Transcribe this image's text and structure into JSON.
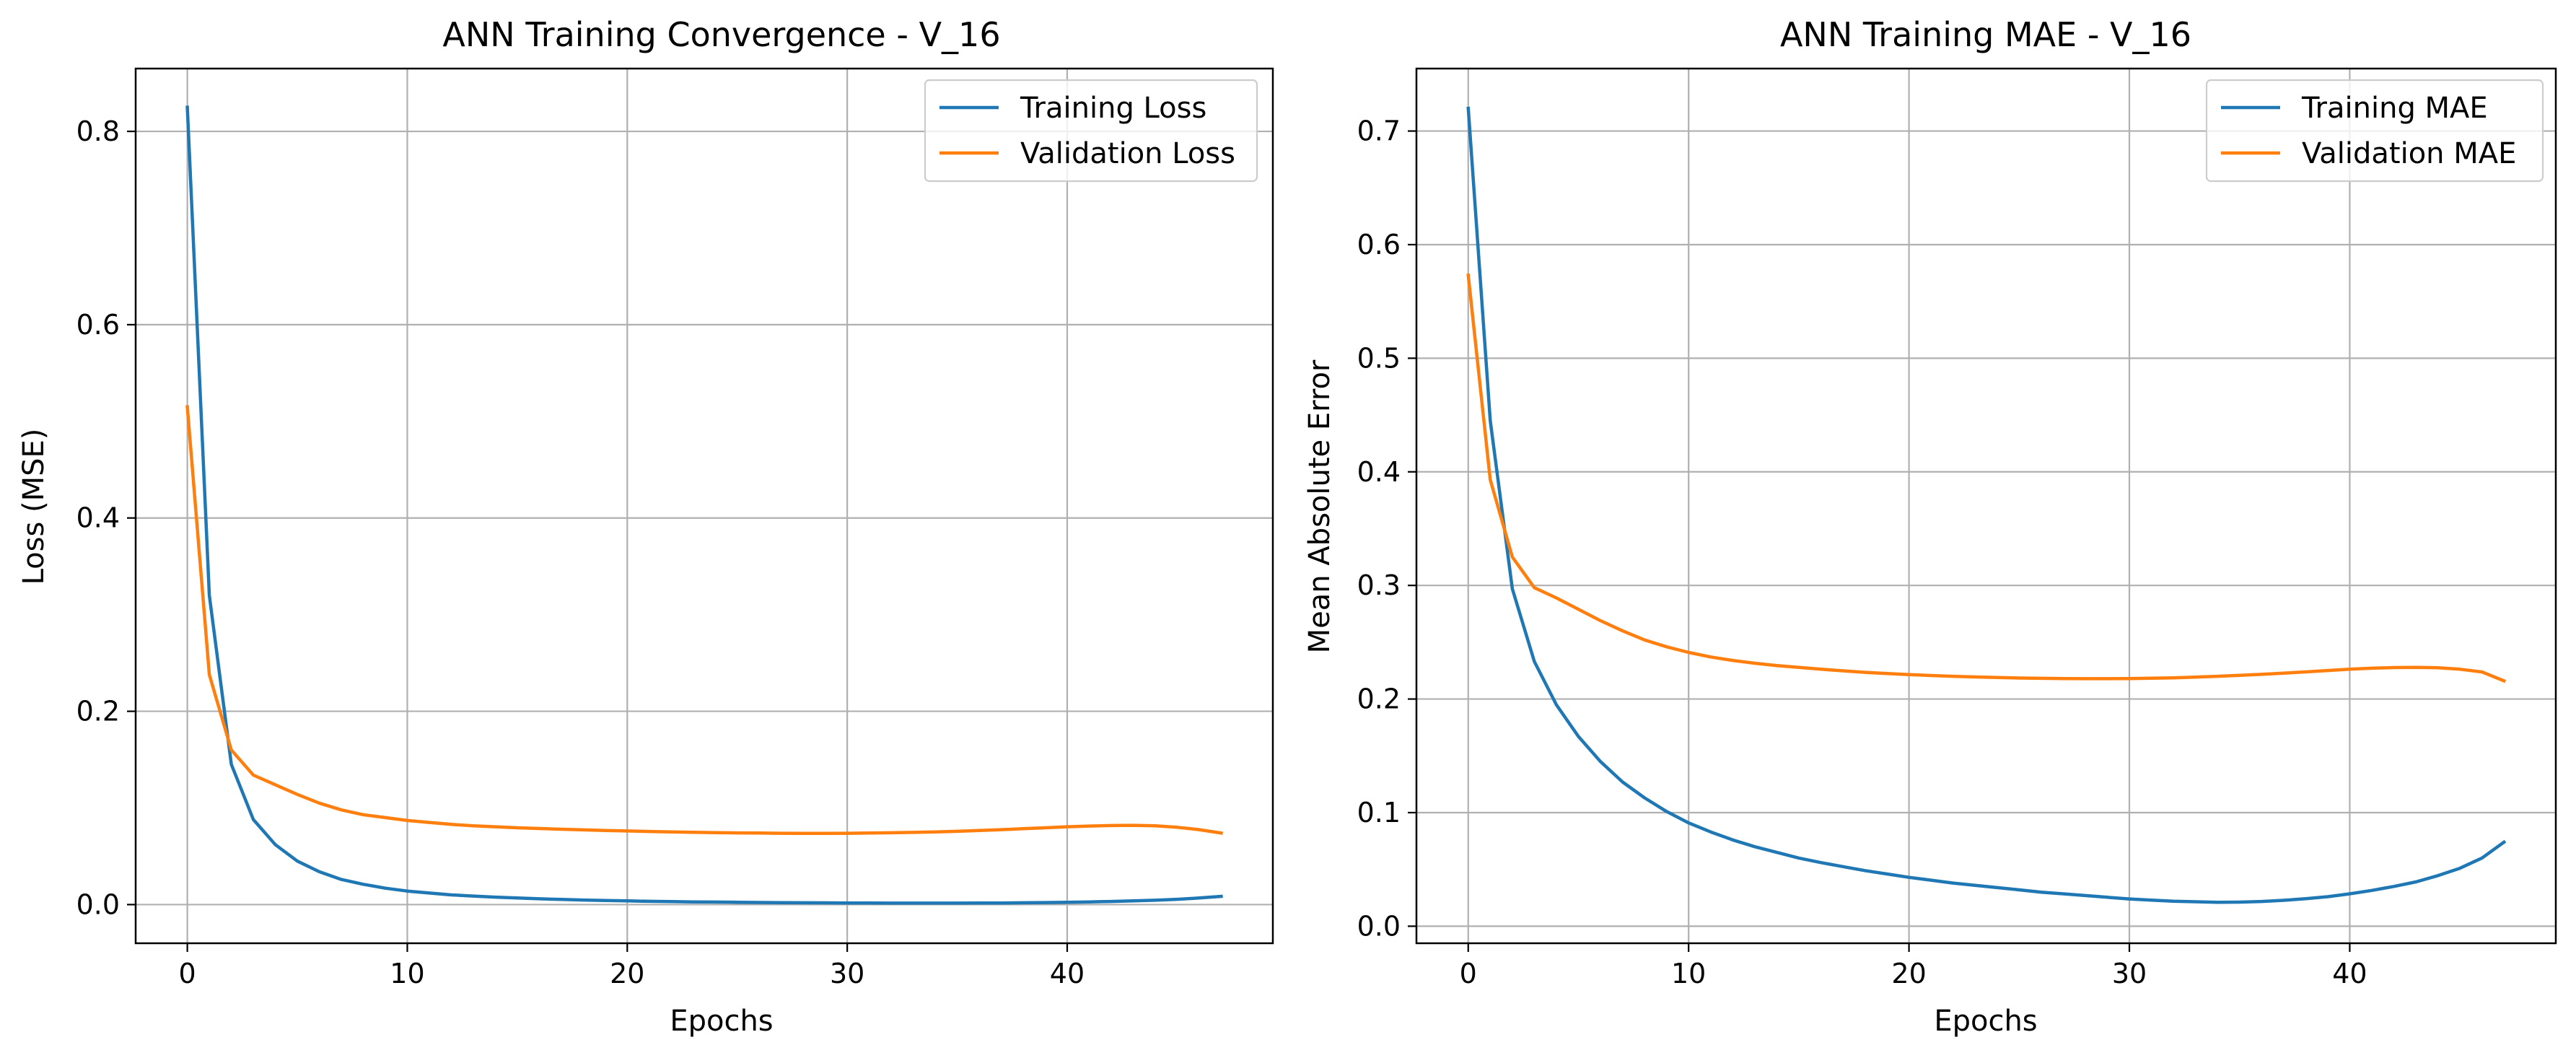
{
  "chart_data": [
    {
      "type": "line",
      "title": "ANN Training Convergence - V_16",
      "xlabel": "Epochs",
      "ylabel": "Loss (MSE)",
      "xlim": [
        -2.35,
        49.35
      ],
      "ylim": [
        -0.04,
        0.865
      ],
      "xticks": [
        0,
        10,
        20,
        30,
        40
      ],
      "yticks": [
        0.0,
        0.2,
        0.4,
        0.6,
        0.8
      ],
      "ytick_labels": [
        "0.0",
        "0.2",
        "0.4",
        "0.6",
        "0.8"
      ],
      "grid": true,
      "legend_position": "top-right",
      "x": [
        0,
        1,
        2,
        3,
        4,
        5,
        6,
        7,
        8,
        9,
        10,
        11,
        12,
        13,
        14,
        15,
        16,
        17,
        18,
        19,
        20,
        21,
        22,
        23,
        24,
        25,
        26,
        27,
        28,
        29,
        30,
        31,
        32,
        33,
        34,
        35,
        36,
        37,
        38,
        39,
        40,
        41,
        42,
        43,
        44,
        45,
        46,
        47
      ],
      "series": [
        {
          "name": "Training Loss",
          "color": "#1f77b4",
          "values": [
            0.825,
            0.32,
            0.145,
            0.088,
            0.062,
            0.045,
            0.034,
            0.026,
            0.021,
            0.017,
            0.014,
            0.012,
            0.01,
            0.0088,
            0.0077,
            0.0068,
            0.006,
            0.0053,
            0.0047,
            0.0042,
            0.0038,
            0.0034,
            0.0031,
            0.0028,
            0.0026,
            0.0024,
            0.0022,
            0.002,
            0.0019,
            0.0018,
            0.0017,
            0.0016,
            0.0015,
            0.0015,
            0.0015,
            0.0015,
            0.0016,
            0.0017,
            0.0019,
            0.0021,
            0.0024,
            0.0028,
            0.0032,
            0.0038,
            0.0045,
            0.0055,
            0.0068,
            0.0085
          ]
        },
        {
          "name": "Validation Loss",
          "color": "#ff7f0e",
          "values": [
            0.515,
            0.238,
            0.16,
            0.134,
            0.124,
            0.114,
            0.105,
            0.098,
            0.093,
            0.09,
            0.087,
            0.085,
            0.083,
            0.0815,
            0.0805,
            0.0795,
            0.0787,
            0.078,
            0.0773,
            0.0767,
            0.0762,
            0.0757,
            0.0752,
            0.0748,
            0.0745,
            0.0742,
            0.074,
            0.0738,
            0.0737,
            0.0737,
            0.0738,
            0.074,
            0.0743,
            0.0747,
            0.0752,
            0.0758,
            0.0766,
            0.0775,
            0.0785,
            0.0795,
            0.0805,
            0.0813,
            0.0818,
            0.082,
            0.0815,
            0.08,
            0.0775,
            0.074
          ]
        }
      ]
    },
    {
      "type": "line",
      "title": "ANN Training MAE - V_16",
      "xlabel": "Epochs",
      "ylabel": "Mean Absolute Error",
      "xlim": [
        -2.35,
        49.35
      ],
      "ylim": [
        -0.015,
        0.755
      ],
      "xticks": [
        0,
        10,
        20,
        30,
        40
      ],
      "yticks": [
        0.0,
        0.1,
        0.2,
        0.3,
        0.4,
        0.5,
        0.6,
        0.7
      ],
      "ytick_labels": [
        "0.0",
        "0.1",
        "0.2",
        "0.3",
        "0.4",
        "0.5",
        "0.6",
        "0.7"
      ],
      "grid": true,
      "legend_position": "top-right",
      "x": [
        0,
        1,
        2,
        3,
        4,
        5,
        6,
        7,
        8,
        9,
        10,
        11,
        12,
        13,
        14,
        15,
        16,
        17,
        18,
        19,
        20,
        21,
        22,
        23,
        24,
        25,
        26,
        27,
        28,
        29,
        30,
        31,
        32,
        33,
        34,
        35,
        36,
        37,
        38,
        39,
        40,
        41,
        42,
        43,
        44,
        45,
        46,
        47
      ],
      "series": [
        {
          "name": "Training MAE",
          "color": "#1f77b4",
          "values": [
            0.72,
            0.445,
            0.297,
            0.233,
            0.195,
            0.167,
            0.145,
            0.127,
            0.113,
            0.101,
            0.091,
            0.083,
            0.076,
            0.07,
            0.065,
            0.06,
            0.056,
            0.0525,
            0.049,
            0.046,
            0.043,
            0.0405,
            0.038,
            0.036,
            0.034,
            0.032,
            0.03,
            0.0285,
            0.027,
            0.0255,
            0.024,
            0.023,
            0.022,
            0.0215,
            0.021,
            0.0212,
            0.0218,
            0.0228,
            0.0242,
            0.026,
            0.0285,
            0.0315,
            0.035,
            0.039,
            0.0445,
            0.051,
            0.06,
            0.074
          ]
        },
        {
          "name": "Validation MAE",
          "color": "#ff7f0e",
          "values": [
            0.573,
            0.393,
            0.325,
            0.298,
            0.289,
            0.279,
            0.269,
            0.26,
            0.252,
            0.246,
            0.241,
            0.237,
            0.234,
            0.2315,
            0.2295,
            0.2278,
            0.2262,
            0.2248,
            0.2235,
            0.2224,
            0.2215,
            0.2207,
            0.22,
            0.2194,
            0.2189,
            0.2185,
            0.2182,
            0.218,
            0.2179,
            0.2179,
            0.218,
            0.2183,
            0.2187,
            0.2193,
            0.22,
            0.2208,
            0.2217,
            0.2228,
            0.2239,
            0.2251,
            0.2262,
            0.2271,
            0.2277,
            0.2279,
            0.2275,
            0.2262,
            0.2238,
            0.216
          ]
        }
      ]
    }
  ]
}
